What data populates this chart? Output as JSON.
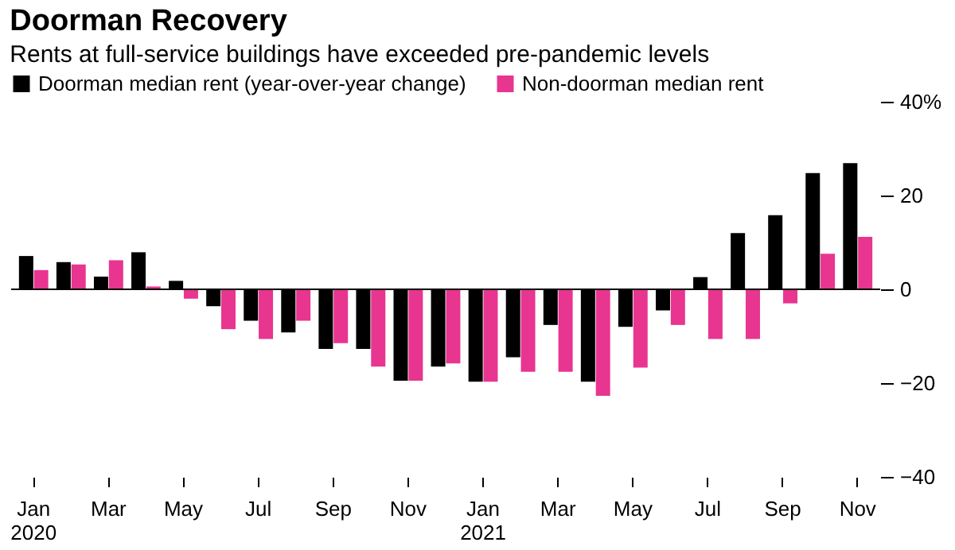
{
  "chart_data": {
    "type": "bar",
    "title": "Doorman Recovery",
    "subtitle": "Rents at full-service buildings have exceeded pre-pandemic levels",
    "categories": [
      "Jan 2020",
      null,
      "Mar",
      null,
      "May",
      null,
      "Jul",
      null,
      "Sep",
      null,
      "Nov",
      null,
      "Jan 2021",
      null,
      "Mar",
      null,
      "May",
      null,
      "Jul",
      null,
      "Sep",
      null,
      "Nov"
    ],
    "series": [
      {
        "name": "Doorman median rent (year-over-year change)",
        "color": "#000000",
        "values": [
          7.1,
          5.8,
          2.7,
          7.9,
          1.8,
          -3.6,
          -6.7,
          -9.2,
          -12.7,
          -12.7,
          -19.5,
          -16.5,
          -19.7,
          -14.5,
          -7.6,
          -19.7,
          -8.0,
          -4.5,
          2.6,
          12.0,
          15.8,
          24.8,
          26.9
        ]
      },
      {
        "name": "Non-doorman median rent",
        "color": "#e8358f",
        "values": [
          4.1,
          5.3,
          6.2,
          0.6,
          -2.0,
          -8.5,
          -10.6,
          -6.7,
          -11.5,
          -16.5,
          -19.5,
          -15.8,
          -19.7,
          -17.6,
          -17.6,
          -22.7,
          -16.7,
          -7.6,
          -10.6,
          -10.6,
          -3.0,
          7.6,
          11.2
        ]
      }
    ],
    "ylim": [
      -40,
      40
    ],
    "yticks": [
      {
        "value": 40,
        "label": "40%"
      },
      20,
      0,
      -20,
      -40
    ],
    "ref_lines": [
      {
        "axis": "y",
        "value": 0
      }
    ],
    "legend": "top left",
    "grid": false
  }
}
